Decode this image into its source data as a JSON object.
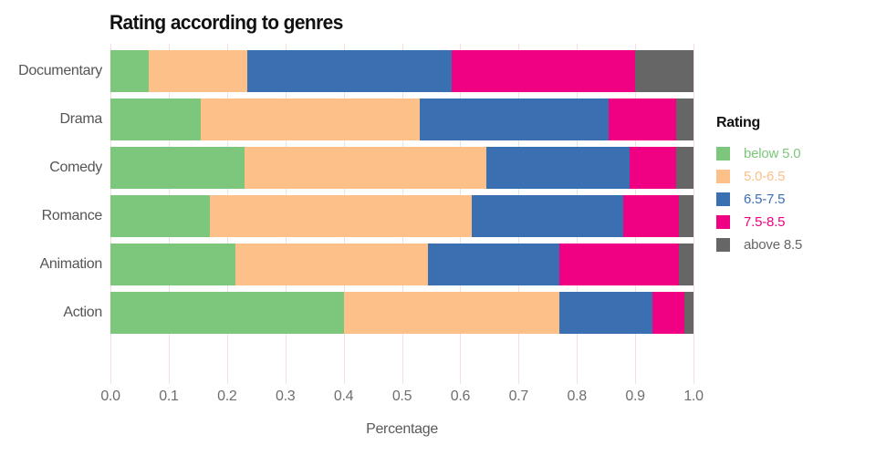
{
  "chart_data": {
    "type": "bar",
    "orientation": "horizontal",
    "stacked": true,
    "title": "Rating according to genres",
    "xlabel": "Percentage",
    "ylabel": "",
    "xlim": [
      0.0,
      1.0
    ],
    "xticks": [
      "0.0",
      "0.1",
      "0.2",
      "0.3",
      "0.4",
      "0.5",
      "0.6",
      "0.7",
      "0.8",
      "0.9",
      "1.0"
    ],
    "grid": "vertical gridlines every 0.1, light pink, on white background",
    "legend_position": "right",
    "legend_title": "Rating",
    "categories": [
      "Documentary",
      "Drama",
      "Comedy",
      "Romance",
      "Animation",
      "Action"
    ],
    "series": [
      {
        "name": "below 5.0",
        "color": "#7cc77b",
        "values": [
          0.065,
          0.155,
          0.23,
          0.17,
          0.215,
          0.4
        ]
      },
      {
        "name": "5.0-6.5",
        "color": "#fcc088",
        "values": [
          0.17,
          0.375,
          0.415,
          0.45,
          0.33,
          0.37
        ]
      },
      {
        "name": "6.5-7.5",
        "color": "#3a6fb2",
        "values": [
          0.35,
          0.325,
          0.245,
          0.26,
          0.225,
          0.16
        ]
      },
      {
        "name": "7.5-8.5",
        "color": "#f00082",
        "values": [
          0.315,
          0.115,
          0.08,
          0.095,
          0.205,
          0.055
        ]
      },
      {
        "name": "above 8.5",
        "color": "#666666",
        "values": [
          0.1,
          0.03,
          0.03,
          0.025,
          0.025,
          0.015
        ]
      }
    ]
  },
  "colors": {
    "background": "#ffffff",
    "grid": "#f6dde0",
    "title_text": "#111111",
    "category_label_text": "#555555",
    "tick_label_text": "#6e6e6e",
    "axis_label_text": "#595959",
    "legend_title_text": "#111111"
  }
}
